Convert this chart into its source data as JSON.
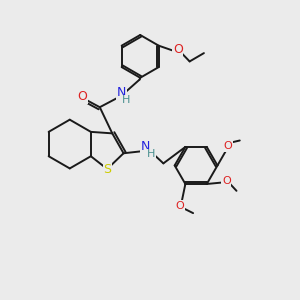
{
  "background_color": "#ebebeb",
  "bond_color": "#1a1a1a",
  "figsize": [
    3.0,
    3.0
  ],
  "dpi": 100,
  "S_color": "#cccc00",
  "N_color": "#2222dd",
  "O_color": "#dd2222",
  "H_color": "#4a9090",
  "lw": 1.4,
  "xlim": [
    0,
    10
  ],
  "ylim": [
    0,
    10
  ]
}
